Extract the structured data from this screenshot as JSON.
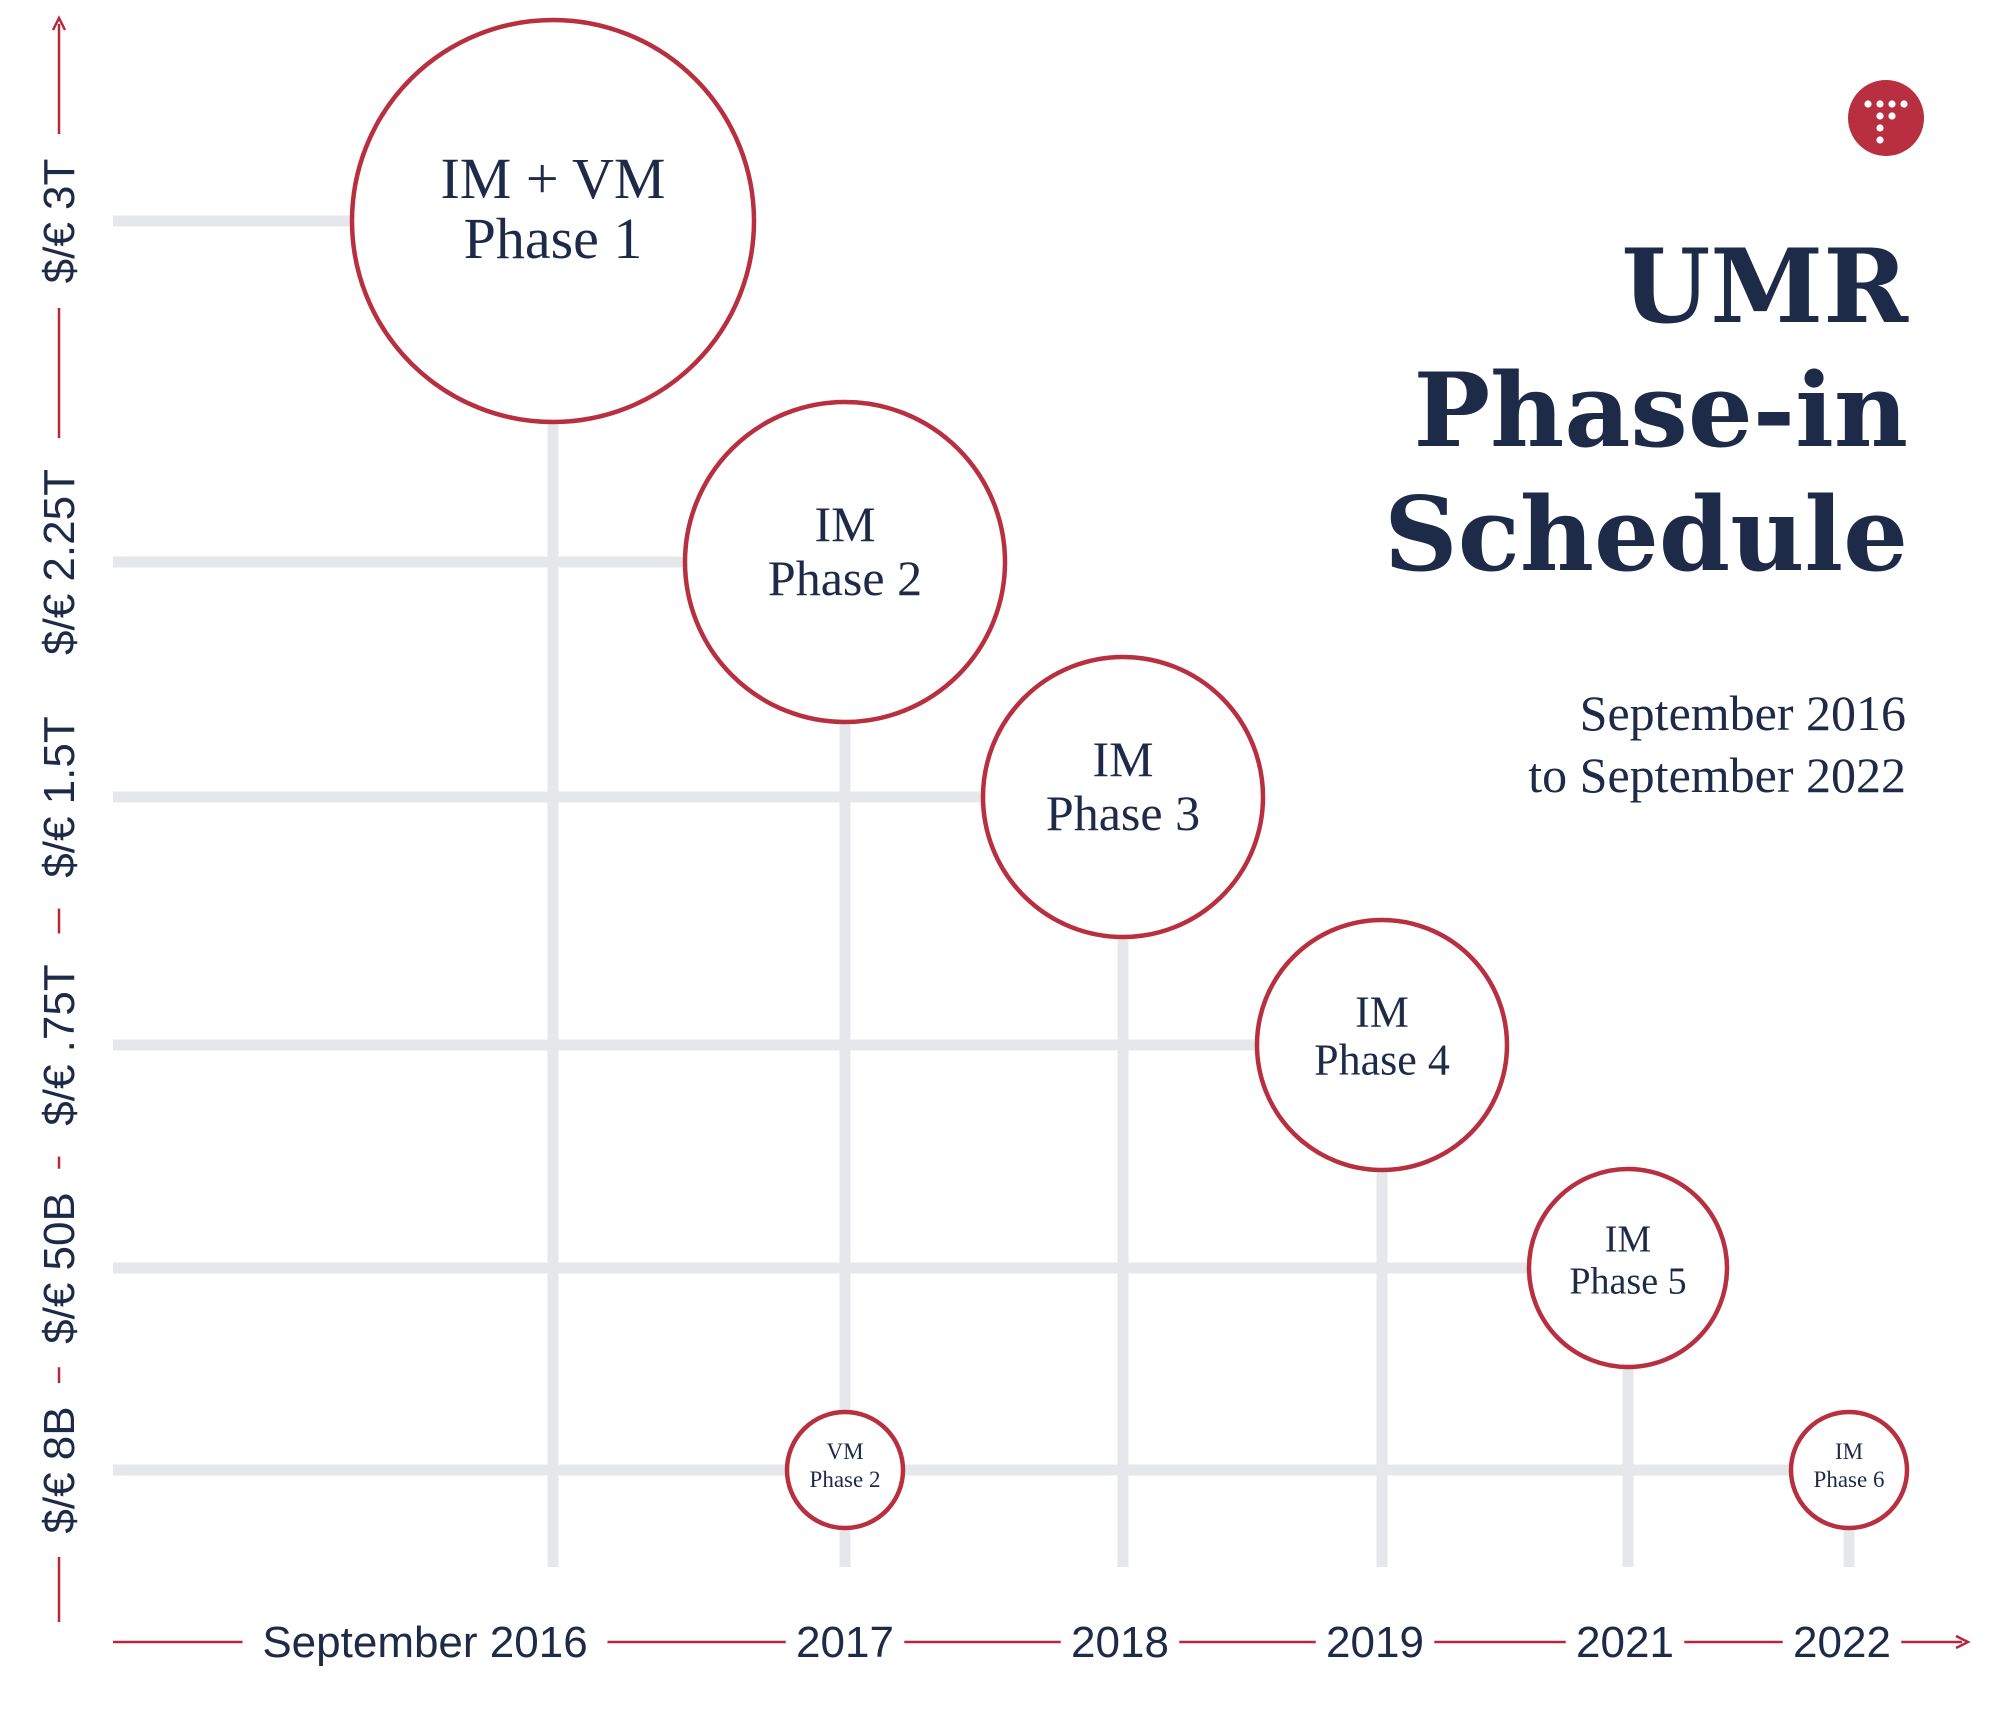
{
  "title_lines": [
    "UMR",
    "Phase-in",
    "Schedule"
  ],
  "subtitle_lines": [
    "September 2016",
    "to September 2022"
  ],
  "colors": {
    "accent": "#b8303f",
    "text": "#1d2a48",
    "grid": "#e6e7ea"
  },
  "logo_icon": "dot-grid-icon",
  "chart_data": {
    "type": "scatter",
    "x_categories": [
      "September 2016",
      "2017",
      "2018",
      "2019",
      "2021",
      "2022"
    ],
    "y_categories": [
      "$/€ 8B",
      "$/€ 50B",
      "$/€ .75T",
      "$/€ 1.5T",
      "$/€ 2.25T",
      "$/€ 3T"
    ],
    "grid": true,
    "points": [
      {
        "x": "September 2016",
        "y": "$/€ 3T",
        "label_lines": [
          "IM + VM",
          "Phase 1"
        ]
      },
      {
        "x": "2017",
        "y": "$/€ 2.25T",
        "label_lines": [
          "IM",
          "Phase 2"
        ]
      },
      {
        "x": "2017",
        "y": "$/€ 8B",
        "label_lines": [
          "VM",
          "Phase 2"
        ]
      },
      {
        "x": "2018",
        "y": "$/€ 1.5T",
        "label_lines": [
          "IM",
          "Phase 3"
        ]
      },
      {
        "x": "2019",
        "y": "$/€ .75T",
        "label_lines": [
          "IM",
          "Phase 4"
        ]
      },
      {
        "x": "2021",
        "y": "$/€ 50B",
        "label_lines": [
          "IM",
          "Phase 5"
        ]
      },
      {
        "x": "2022",
        "y": "$/€ 8B",
        "label_lines": [
          "IM",
          "Phase 6"
        ]
      }
    ]
  }
}
